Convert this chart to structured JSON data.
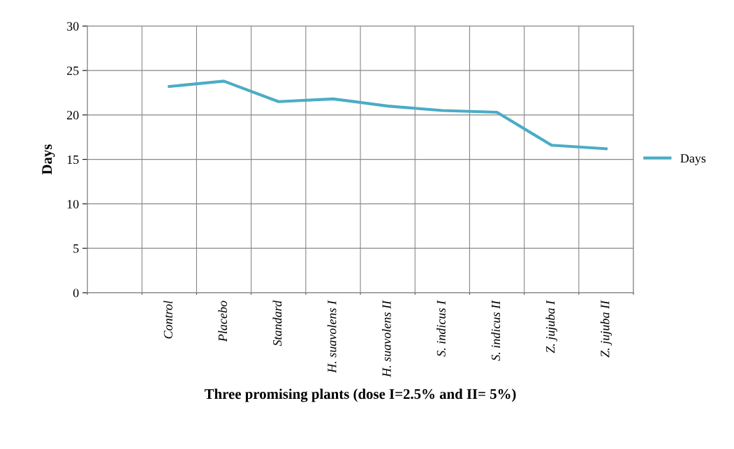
{
  "chart_data": {
    "type": "line",
    "xlabel": "Three promising plants (dose I=2.5% and II= 5%)",
    "ylabel": "Days",
    "categories": [
      null,
      "Control",
      "Placebo",
      "Standard",
      "H. suavolens I",
      "H. suavolens II",
      "S. indicus I",
      "S. indicus II",
      "Z. jujuba I",
      "Z. jujuba II"
    ],
    "series": [
      {
        "name": "Days",
        "color": "#4bacc6",
        "values": [
          null,
          23.2,
          23.8,
          21.5,
          21.8,
          21.0,
          20.5,
          20.3,
          16.6,
          16.2
        ]
      }
    ],
    "ylim": [
      0,
      30
    ],
    "yticks": [
      0,
      5,
      10,
      15,
      20,
      25,
      30
    ],
    "grid": true,
    "legend": "right",
    "marker": "none",
    "line_style": "solid"
  }
}
